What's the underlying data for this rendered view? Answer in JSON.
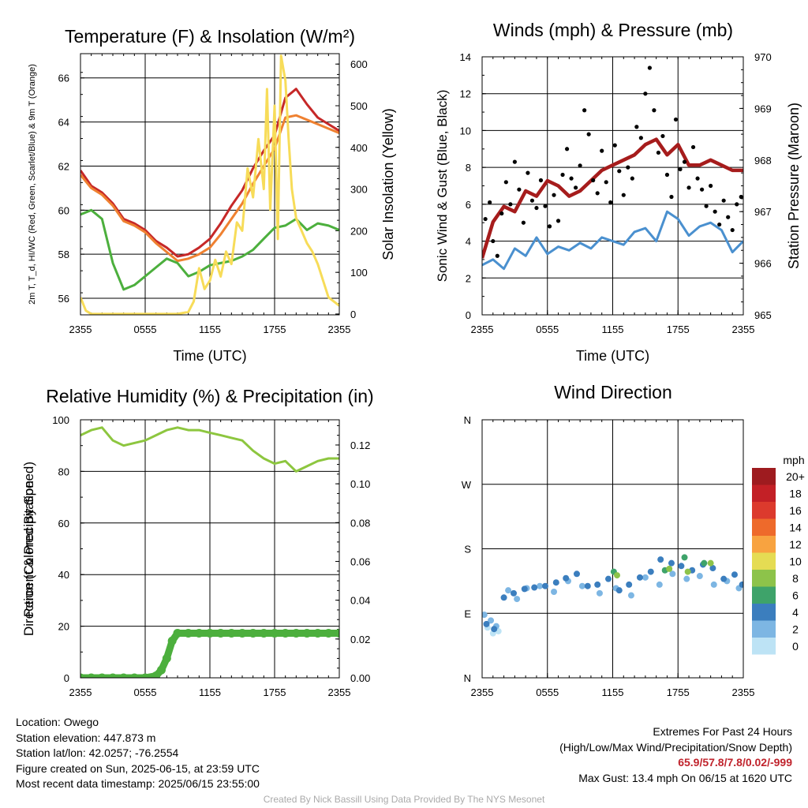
{
  "chart_data": [
    {
      "type": "line",
      "title": "Temperature (F) & Insolation (W/m²)",
      "xlabel": "Time (UTC)",
      "ylabel": "2m T, T_d, HI/WC (Red, Green, Scarlet/Blue) & 9m T (Orange)",
      "y2label": "Solar Insolation (Yellow)",
      "categories": [
        "2355",
        "0555",
        "1155",
        "1755",
        "2355"
      ],
      "ylim": [
        55.25,
        67.1
      ],
      "y_ticks": [
        56,
        58,
        60,
        62,
        64,
        66
      ],
      "y2lim": [
        -2,
        625
      ],
      "y2_ticks": [
        0,
        100,
        200,
        300,
        400,
        500,
        600
      ],
      "grid": true,
      "series": [
        {
          "axis": "left",
          "color": "#c62828",
          "x": [
            0,
            1,
            2,
            3,
            4,
            5,
            6,
            7,
            8,
            9,
            10,
            11,
            12,
            13,
            14,
            15,
            16,
            17,
            18,
            19,
            20,
            21,
            22,
            23,
            24
          ],
          "values": [
            61.8,
            61.1,
            60.8,
            60.3,
            59.6,
            59.4,
            59.1,
            58.6,
            58.3,
            57.9,
            58.0,
            58.3,
            58.7,
            59.4,
            60.2,
            60.9,
            61.9,
            62.7,
            63.4,
            65.1,
            65.5,
            64.8,
            64.2,
            63.9,
            63.6
          ]
        },
        {
          "axis": "left",
          "color": "#ef8131",
          "x": [
            0,
            1,
            2,
            3,
            4,
            5,
            6,
            7,
            8,
            9,
            10,
            11,
            12,
            13,
            14,
            15,
            16,
            17,
            18,
            19,
            20,
            21,
            22,
            23,
            24
          ],
          "values": [
            61.6,
            61.0,
            60.7,
            60.2,
            59.5,
            59.3,
            59.0,
            58.5,
            58.1,
            57.7,
            57.8,
            58.0,
            58.3,
            58.9,
            59.6,
            60.3,
            61.2,
            62.0,
            62.8,
            64.2,
            64.3,
            64.1,
            63.9,
            63.7,
            63.5
          ]
        },
        {
          "axis": "left",
          "color": "#4caf3d",
          "x": [
            0,
            1,
            2,
            3,
            4,
            5,
            6,
            7,
            8,
            9,
            10,
            11,
            12,
            13,
            14,
            15,
            16,
            17,
            18,
            19,
            20,
            21,
            22,
            23,
            24
          ],
          "values": [
            59.8,
            60.0,
            59.6,
            57.6,
            56.4,
            56.6,
            57.0,
            57.4,
            57.8,
            57.6,
            57.0,
            57.2,
            57.5,
            57.6,
            57.7,
            57.9,
            58.2,
            58.7,
            59.2,
            59.3,
            59.6,
            59.1,
            59.4,
            59.3,
            59.1
          ]
        },
        {
          "axis": "right",
          "color": "#f7dc59",
          "x": [
            0,
            0.5,
            1,
            2,
            3,
            4,
            5,
            6,
            7,
            8,
            9,
            10,
            10.5,
            11,
            11.5,
            12,
            12.5,
            13,
            13.5,
            14,
            14.5,
            15,
            15.5,
            16,
            16.5,
            17,
            17.3,
            17.6,
            18,
            18.3,
            18.6,
            19,
            19.3,
            19.6,
            20,
            20.5,
            21,
            21.5,
            22,
            22.5,
            23,
            24
          ],
          "values": [
            40,
            8,
            0,
            0,
            0,
            0,
            0,
            0,
            0,
            0,
            0,
            5,
            30,
            110,
            60,
            80,
            130,
            90,
            150,
            120,
            220,
            200,
            350,
            280,
            420,
            300,
            540,
            250,
            500,
            180,
            620,
            560,
            420,
            300,
            230,
            200,
            170,
            150,
            120,
            80,
            40,
            20
          ]
        }
      ]
    },
    {
      "type": "line",
      "title": "Winds (mph) & Pressure (mb)",
      "xlabel": "Time (UTC)",
      "ylabel": "Sonic Wind & Gust (Blue, Black)",
      "y2label": "Station Pressure (Maroon)",
      "categories": [
        "2355",
        "0555",
        "1155",
        "1755",
        "2355"
      ],
      "ylim": [
        0,
        14
      ],
      "y_ticks": [
        0,
        2,
        4,
        6,
        8,
        10,
        12,
        14
      ],
      "y2lim": [
        965,
        970
      ],
      "y2_ticks": [
        965,
        966,
        967,
        968,
        969,
        970
      ],
      "grid": true,
      "series": [
        {
          "axis": "left",
          "color": "#4a90cf",
          "x": [
            0,
            1,
            2,
            3,
            4,
            5,
            6,
            7,
            8,
            9,
            10,
            11,
            12,
            13,
            14,
            15,
            16,
            17,
            18,
            19,
            20,
            21,
            22,
            23,
            24
          ],
          "values": [
            2.7,
            3.0,
            2.5,
            3.6,
            3.2,
            4.2,
            3.3,
            3.7,
            3.5,
            3.9,
            3.6,
            4.2,
            4.0,
            3.8,
            4.5,
            4.7,
            4.0,
            5.6,
            5.2,
            4.3,
            4.8,
            5.0,
            4.6,
            3.4,
            4.0
          ]
        },
        {
          "axis": "right",
          "color": "#a61c1c",
          "x": [
            0,
            1,
            2,
            3,
            4,
            5,
            6,
            7,
            8,
            9,
            10,
            11,
            12,
            13,
            14,
            15,
            16,
            17,
            18,
            19,
            20,
            21,
            22,
            23,
            24
          ],
          "values": [
            966.1,
            966.8,
            967.1,
            967.0,
            967.4,
            967.3,
            967.6,
            967.5,
            967.3,
            967.4,
            967.6,
            967.8,
            967.9,
            968.0,
            968.1,
            968.3,
            968.4,
            968.1,
            968.3,
            967.9,
            967.9,
            968.0,
            967.9,
            967.8,
            967.8
          ]
        },
        {
          "axis": "left",
          "color": "#000000",
          "style": "points",
          "x": [
            0.3,
            0.7,
            1.0,
            1.4,
            1.8,
            2.2,
            2.6,
            3.0,
            3.4,
            3.8,
            4.2,
            4.6,
            5.0,
            5.4,
            5.8,
            6.2,
            6.6,
            7.0,
            7.4,
            7.8,
            8.2,
            8.6,
            9.0,
            9.4,
            9.8,
            10.2,
            10.6,
            11.0,
            11.4,
            11.8,
            12.2,
            12.6,
            13.0,
            13.4,
            13.8,
            14.2,
            14.6,
            15.0,
            15.4,
            15.8,
            16.2,
            16.6,
            17.0,
            17.4,
            17.8,
            18.2,
            18.6,
            19.0,
            19.4,
            19.8,
            20.2,
            20.6,
            21.0,
            21.4,
            21.8,
            22.2,
            22.6,
            23.0,
            23.4,
            23.8
          ],
          "values": [
            5.2,
            6.1,
            4.0,
            3.2,
            5.5,
            7.2,
            6.0,
            8.3,
            6.8,
            5.0,
            7.7,
            6.2,
            5.8,
            7.3,
            5.9,
            4.8,
            6.5,
            5.1,
            7.6,
            9.0,
            7.4,
            6.9,
            8.1,
            11.1,
            9.8,
            7.3,
            6.6,
            8.9,
            7.2,
            6.1,
            9.2,
            7.8,
            6.5,
            8.0,
            7.4,
            10.2,
            9.6,
            12.0,
            13.4,
            11.1,
            8.8,
            9.7,
            7.6,
            6.4,
            10.6,
            7.9,
            8.3,
            6.9,
            9.1,
            7.4,
            6.8,
            5.9,
            7.0,
            5.6,
            4.9,
            6.2,
            5.3,
            4.6,
            6.0,
            6.4
          ]
        }
      ]
    },
    {
      "type": "line",
      "title": "Relative Humidity (%) & Precipitation (in)",
      "xlabel": "",
      "ylabel": "Percent & Precipitation",
      "categories": [
        "2355",
        "0555",
        "1155",
        "1755",
        "2355"
      ],
      "ylim": [
        0,
        100
      ],
      "y_ticks": [
        0,
        20,
        40,
        60,
        80,
        100
      ],
      "y2lim": [
        0,
        0.133
      ],
      "y2_ticks": [
        0.0,
        0.02,
        0.04,
        0.06,
        0.08,
        0.1,
        0.12
      ],
      "grid": true,
      "series": [
        {
          "axis": "left",
          "color": "#8dc63f",
          "x": [
            0,
            1,
            2,
            3,
            4,
            5,
            6,
            7,
            8,
            9,
            10,
            11,
            12,
            13,
            14,
            15,
            16,
            17,
            18,
            19,
            20,
            21,
            22,
            23,
            24
          ],
          "values": [
            94,
            96,
            97,
            92,
            90,
            91,
            92,
            94,
            96,
            97,
            96,
            96,
            95,
            94,
            93,
            92,
            88,
            85,
            83,
            84,
            80,
            82,
            84,
            85,
            85
          ]
        },
        {
          "axis": "right",
          "color": "#4caf3d",
          "style": "markers",
          "x": [
            0,
            1,
            2,
            3,
            4,
            5,
            6,
            7,
            7.5,
            8,
            8.5,
            9,
            10,
            11,
            12,
            13,
            14,
            15,
            16,
            17,
            18,
            19,
            20,
            21,
            22,
            23,
            24
          ],
          "values": [
            0,
            0,
            0,
            0,
            0,
            0,
            0,
            0.001,
            0.004,
            0.01,
            0.019,
            0.023,
            0.023,
            0.023,
            0.023,
            0.023,
            0.023,
            0.023,
            0.023,
            0.023,
            0.023,
            0.023,
            0.023,
            0.023,
            0.023,
            0.023,
            0.023
          ]
        }
      ]
    },
    {
      "type": "scatter",
      "title": "Wind Direction",
      "xlabel": "",
      "ylabel": "Direction (Colored By Speed)",
      "categories": [
        "2355",
        "0555",
        "1155",
        "1755",
        "2355"
      ],
      "y_ticks": [
        "N",
        "E",
        "S",
        "W",
        "N"
      ],
      "grid": true,
      "legend": {
        "title": "mph",
        "position": "right",
        "labels": [
          "20+",
          "18",
          "16",
          "14",
          "12",
          "10",
          "8",
          "6",
          "4",
          "2",
          "0"
        ],
        "colors": [
          "#9e1b1f",
          "#c32026",
          "#dc3a2d",
          "#ee6a2b",
          "#f8a340",
          "#e5dc53",
          "#8dc34a",
          "#3ea36a",
          "#3b7ebe",
          "#7db6e3",
          "#bde3f5"
        ]
      },
      "series": [
        {
          "name": "0",
          "color": "#bde3f5",
          "x": [
            0.5,
            1.0,
            1.5
          ],
          "values": [
            70,
            62,
            65
          ]
        },
        {
          "name": "2",
          "color": "#7db6e3",
          "x": [
            0.2,
            0.8,
            1.3,
            2.4,
            3.2,
            4.1,
            5.3,
            6.6,
            7.9,
            9.2,
            10.8,
            12.3,
            13.7,
            15.0,
            16.3,
            17.5,
            18.8,
            20.0,
            21.3,
            22.5,
            23.6
          ],
          "values": [
            88,
            80,
            72,
            122,
            110,
            125,
            128,
            120,
            135,
            128,
            118,
            125,
            115,
            140,
            130,
            145,
            138,
            142,
            130,
            135,
            125
          ]
        },
        {
          "name": "4",
          "color": "#3b7ebe",
          "x": [
            0.4,
            1.1,
            2.0,
            2.9,
            3.9,
            4.8,
            5.8,
            6.8,
            7.7,
            8.7,
            9.7,
            10.6,
            11.6,
            12.6,
            13.5,
            14.5,
            15.5,
            16.4,
            17.4,
            18.3,
            19.3,
            20.3,
            21.2,
            22.2,
            23.2,
            23.9
          ],
          "values": [
            75,
            68,
            112,
            118,
            124,
            126,
            128,
            133,
            139,
            145,
            128,
            130,
            138,
            122,
            130,
            140,
            148,
            165,
            160,
            156,
            150,
            158,
            153,
            138,
            144,
            130
          ]
        },
        {
          "name": "6",
          "color": "#3ea36a",
          "x": [
            12.1,
            16.8,
            18.6,
            20.4
          ],
          "values": [
            148,
            150,
            168,
            160
          ]
        },
        {
          "name": "8",
          "color": "#8dc34a",
          "x": [
            12.4,
            17.2,
            18.9,
            21.0
          ],
          "values": [
            143,
            152,
            148,
            160
          ]
        }
      ]
    }
  ],
  "info": {
    "location": "Location: Owego",
    "elevation": "Station elevation: 447.873 m",
    "latlon": "Station lat/lon: 42.0257; -76.2554",
    "created": "Figure created on Sun, 2025-06-15, at 23:59 UTC",
    "recent": "Most recent data timestamp: 2025/06/15 23:55:00"
  },
  "extremes": {
    "title": "Extremes For Past 24 Hours",
    "subtitle": "(High/Low/Max Wind/Precipitation/Snow Depth)",
    "values": "65.9/57.8/7.8/0.02/-999",
    "gust": "Max Gust: 13.4 mph On 06/15 at 1620 UTC"
  },
  "credit": "Created By Nick Bassill Using Data Provided By The NYS Mesonet"
}
